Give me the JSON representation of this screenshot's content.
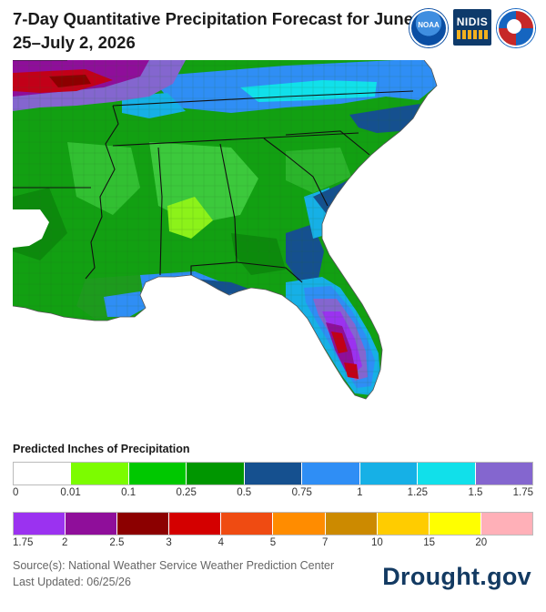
{
  "header": {
    "title": "7-Day Quantitative Precipitation Forecast for June 25–July 2, 2026",
    "logos": [
      {
        "name": "noaa-logo",
        "text": "NOAA"
      },
      {
        "name": "nidis-logo",
        "text": "NIDIS"
      },
      {
        "name": "nws-logo",
        "text": "National Weather Service"
      }
    ]
  },
  "map": {
    "region": "Southeastern United States",
    "icon": "precipitation-map"
  },
  "legend": {
    "title": "Predicted Inches of Precipitation",
    "row1": {
      "colors": [
        "#ffffff",
        "#7cfc00",
        "#00c800",
        "#009600",
        "#15508f",
        "#2f8ef5",
        "#16b0e6",
        "#11e0ea",
        "#8466cf"
      ],
      "ticks": [
        "0",
        "0.01",
        "0.1",
        "0.25",
        "0.5",
        "0.75",
        "1",
        "1.25",
        "1.5",
        "1.75"
      ]
    },
    "row2": {
      "colors": [
        "#9b32f0",
        "#8f0e9a",
        "#8c0000",
        "#d40000",
        "#ef4b12",
        "#ff8c00",
        "#cc8a00",
        "#ffcc00",
        "#ffff00",
        "#ffb0b8"
      ],
      "ticks": [
        "1.75",
        "2",
        "2.5",
        "3",
        "4",
        "5",
        "7",
        "10",
        "15",
        "20"
      ]
    }
  },
  "footer": {
    "source": "Source(s): National Weather Service Weather Prediction Center",
    "updated": "Last Updated: 06/25/26",
    "brand": "Drought.gov"
  }
}
